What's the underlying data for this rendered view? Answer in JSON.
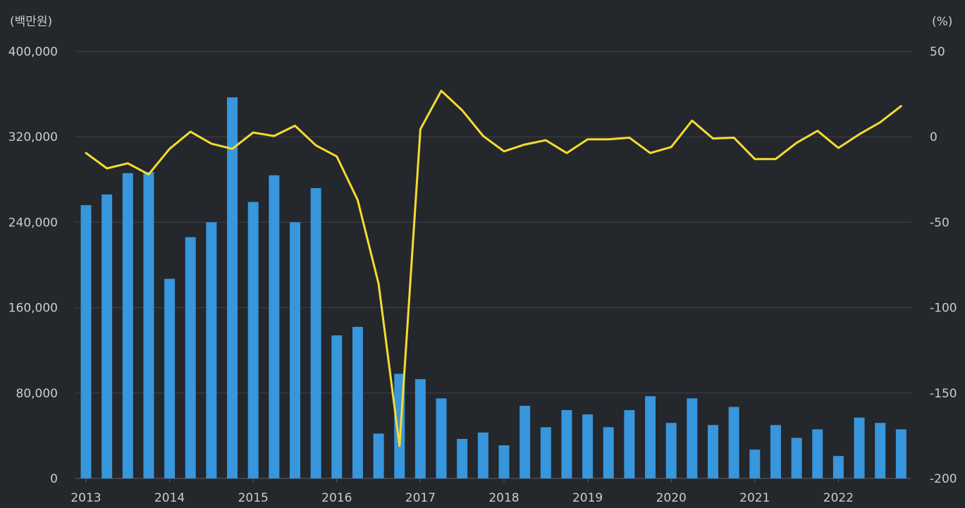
{
  "chart_data": {
    "type": "bar+line",
    "left_axis_unit": "(백만원)",
    "right_axis_unit": "(%)",
    "left_axis": {
      "min": 0,
      "max": 400000,
      "ticks": [
        "400,000",
        "320,000",
        "240,000",
        "160,000",
        "80,000",
        "0"
      ],
      "tick_values": [
        400000,
        320000,
        240000,
        160000,
        80000,
        0
      ]
    },
    "right_axis": {
      "min": -200,
      "max": 50,
      "ticks": [
        "50",
        "0",
        "-50",
        "-100",
        "-150",
        "-200"
      ],
      "tick_values": [
        50,
        0,
        -50,
        -100,
        -150,
        -200
      ]
    },
    "x_axis": {
      "ticks": [
        "2013",
        "2014",
        "2015",
        "2016",
        "2017",
        "2018",
        "2019",
        "2020",
        "2021",
        "2022"
      ]
    },
    "grid": true,
    "quarters": [
      "2013.1",
      "2013.2",
      "2013.3",
      "2013.4",
      "2014.1",
      "2014.2",
      "2014.3",
      "2014.4",
      "2015.1",
      "2015.2",
      "2015.3",
      "2015.4",
      "2016.1",
      "2016.2",
      "2016.3",
      "2016.4",
      "2017.1",
      "2017.2",
      "2017.3",
      "2017.4",
      "2018.1",
      "2018.2",
      "2018.3",
      "2018.4",
      "2019.1",
      "2019.2",
      "2019.3",
      "2019.4",
      "2020.1",
      "2020.2",
      "2020.3",
      "2020.4",
      "2021.1",
      "2021.2",
      "2021.3",
      "2021.4",
      "2022.1",
      "2022.2",
      "2022.3",
      "2022.4"
    ],
    "series": [
      {
        "kind": "bar",
        "axis": "left",
        "color": "#3796dc",
        "values": [
          256000,
          266000,
          286000,
          287000,
          187000,
          226000,
          240000,
          357000,
          259000,
          284000,
          240000,
          272000,
          134000,
          142000,
          42000,
          98000,
          93000,
          75000,
          37000,
          43000,
          31000,
          68000,
          48000,
          64000,
          60000,
          48000,
          64000,
          77000,
          52000,
          75000,
          50000,
          67000,
          27000,
          50000,
          38000,
          46000,
          21000,
          57000,
          52000,
          46000
        ]
      },
      {
        "kind": "line",
        "axis": "right",
        "color": "#f5dc2e",
        "values": [
          -9.5,
          -18.5,
          -15.5,
          -22,
          -7,
          3,
          -4,
          -7,
          2.5,
          0.5,
          6.5,
          -5,
          -11.5,
          -37,
          -86,
          -181,
          4.5,
          27,
          15.5,
          0.5,
          -8.5,
          -4.5,
          -2,
          -9.5,
          -1.5,
          -1.5,
          -0.5,
          -9.5,
          -6,
          9.5,
          -1,
          -0.5,
          -13,
          -13,
          -3.5,
          3.5,
          -6.5,
          1.5,
          8.5,
          18
        ]
      }
    ]
  }
}
